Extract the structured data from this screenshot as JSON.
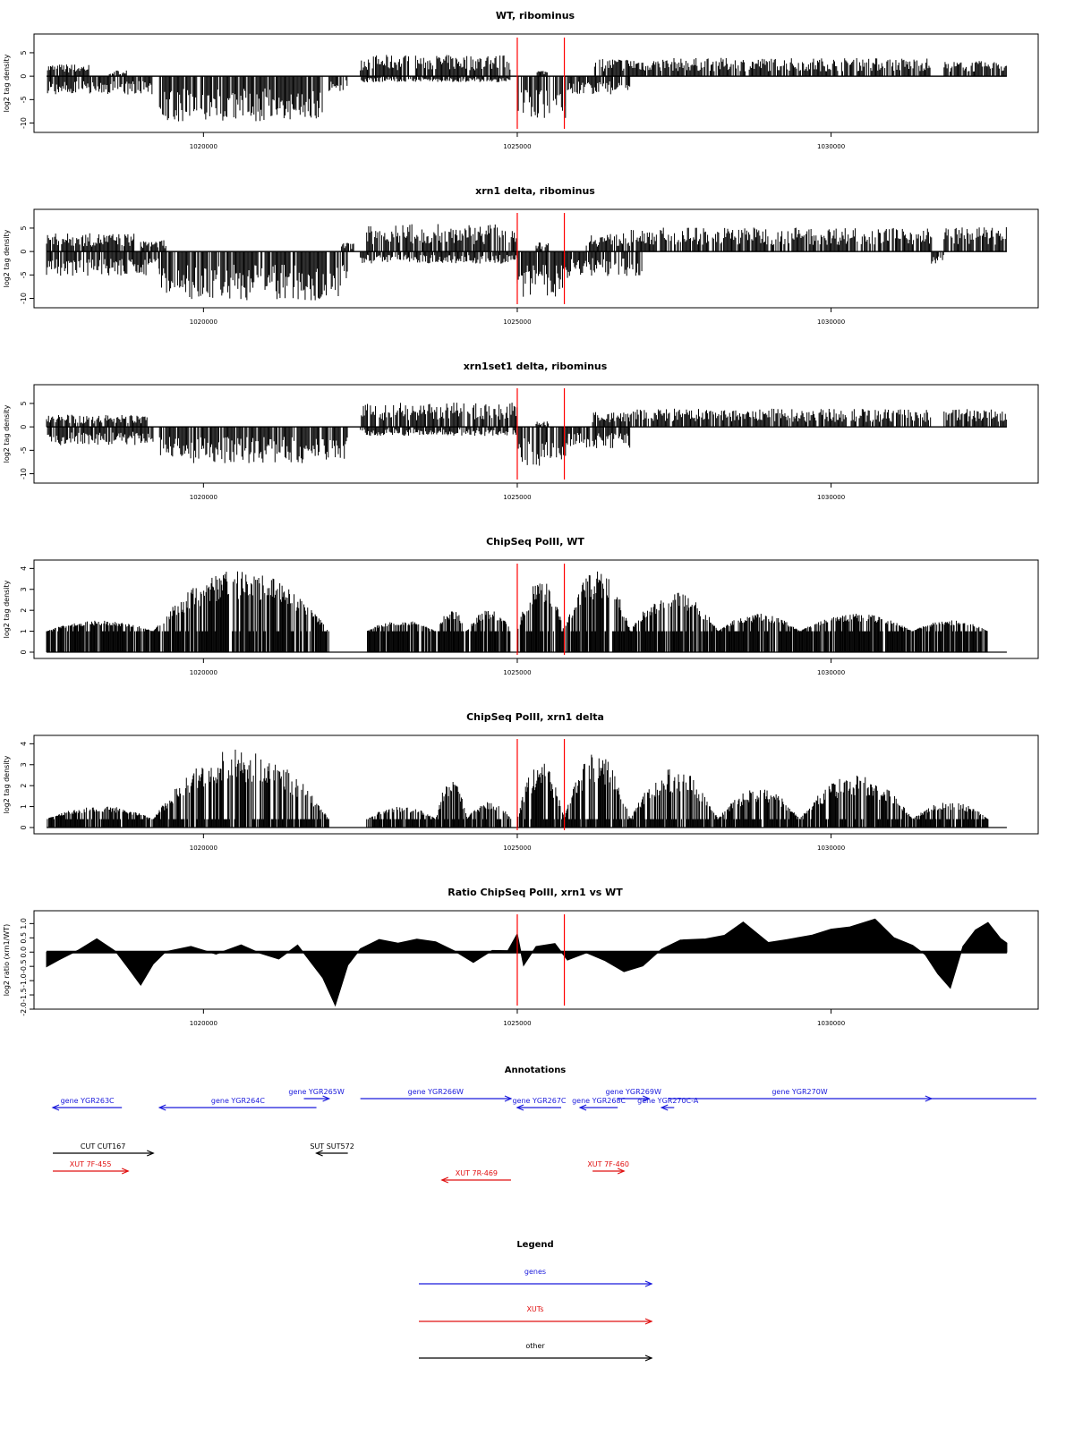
{
  "chart_data": [
    {
      "type": "bar",
      "title": "WT, ribominus",
      "ylabel": "log2 tag density",
      "ylim": [
        -12,
        9
      ],
      "yticks": [
        -10,
        -5,
        0,
        5
      ],
      "yticklabels": [
        "-10",
        "-5",
        "0",
        "5"
      ],
      "xlim": [
        1017300,
        1033300
      ],
      "xticks": [
        1020000,
        1025000,
        1030000
      ],
      "xticklabels": [
        "1020000",
        "1025000",
        "1030000"
      ],
      "markers": [
        1025000,
        1025750
      ],
      "signal": {
        "style": "stranded",
        "pos_segments": [
          {
            "x": [
              1017500,
              1018200
            ],
            "amp": 2.0
          },
          {
            "x": [
              1018500,
              1018800
            ],
            "amp": 1.0
          },
          {
            "x": [
              1022500,
              1024900
            ],
            "amp": 3.5
          },
          {
            "x": [
              1025300,
              1025500
            ],
            "amp": 1.0
          },
          {
            "x": [
              1026200,
              1027000
            ],
            "amp": 3.0
          },
          {
            "x": [
              1027000,
              1031600
            ],
            "amp": 3.0
          },
          {
            "x": [
              1031800,
              1032800
            ],
            "amp": 2.5
          }
        ],
        "neg_segments": [
          {
            "x": [
              1017500,
              1019200
            ],
            "amp": 3.0
          },
          {
            "x": [
              1019300,
              1021900
            ],
            "amp": 7.5
          },
          {
            "x": [
              1022000,
              1022300
            ],
            "amp": 2.5
          },
          {
            "x": [
              1022500,
              1024900
            ],
            "amp": 1.0
          },
          {
            "x": [
              1025000,
              1025800
            ],
            "amp": 7.0
          },
          {
            "x": [
              1025800,
              1026800
            ],
            "amp": 3.0
          }
        ]
      }
    },
    {
      "type": "bar",
      "title": "xrn1 delta, ribominus",
      "ylabel": "log2 tag density",
      "ylim": [
        -12,
        9
      ],
      "yticks": [
        -10,
        -5,
        0,
        5
      ],
      "yticklabels": [
        "-10",
        "-5",
        "0",
        "5"
      ],
      "xlim": [
        1017300,
        1033300
      ],
      "xticks": [
        1020000,
        1025000,
        1030000
      ],
      "xticklabels": [
        "1020000",
        "1025000",
        "1030000"
      ],
      "markers": [
        1025000,
        1025750
      ],
      "signal": {
        "style": "stranded",
        "pos_segments": [
          {
            "x": [
              1017500,
              1018900
            ],
            "amp": 3.0
          },
          {
            "x": [
              1019000,
              1019400
            ],
            "amp": 2.0
          },
          {
            "x": [
              1022200,
              1022400
            ],
            "amp": 1.5
          },
          {
            "x": [
              1022600,
              1025000
            ],
            "amp": 4.5
          },
          {
            "x": [
              1025300,
              1025500
            ],
            "amp": 1.5
          },
          {
            "x": [
              1026100,
              1026800
            ],
            "amp": 3.0
          },
          {
            "x": [
              1026800,
              1031600
            ],
            "amp": 4.0
          },
          {
            "x": [
              1031800,
              1032800
            ],
            "amp": 4.0
          }
        ],
        "neg_segments": [
          {
            "x": [
              1017500,
              1019300
            ],
            "amp": 4.0
          },
          {
            "x": [
              1019300,
              1022300
            ],
            "amp": 8.0
          },
          {
            "x": [
              1022500,
              1025000
            ],
            "amp": 2.0
          },
          {
            "x": [
              1025000,
              1025800
            ],
            "amp": 7.5
          },
          {
            "x": [
              1025800,
              1027000
            ],
            "amp": 4.0
          },
          {
            "x": [
              1031600,
              1031800
            ],
            "amp": 2.0
          }
        ]
      }
    },
    {
      "type": "bar",
      "title": "xrn1set1 delta, ribominus",
      "ylabel": "log2 tag density",
      "ylim": [
        -12,
        9
      ],
      "yticks": [
        -10,
        -5,
        0,
        5
      ],
      "yticklabels": [
        "-10",
        "-5",
        "0",
        "5"
      ],
      "xlim": [
        1017300,
        1033300
      ],
      "xticks": [
        1020000,
        1025000,
        1030000
      ],
      "xticklabels": [
        "1020000",
        "1025000",
        "1030000"
      ],
      "markers": [
        1025000,
        1025750
      ],
      "signal": {
        "style": "stranded",
        "pos_segments": [
          {
            "x": [
              1017500,
              1019100
            ],
            "amp": 2.0
          },
          {
            "x": [
              1022500,
              1025000
            ],
            "amp": 4.0
          },
          {
            "x": [
              1025300,
              1025500
            ],
            "amp": 1.0
          },
          {
            "x": [
              1026200,
              1026800
            ],
            "amp": 2.5
          },
          {
            "x": [
              1026800,
              1031600
            ],
            "amp": 3.0
          },
          {
            "x": [
              1031800,
              1032800
            ],
            "amp": 3.0
          }
        ],
        "neg_segments": [
          {
            "x": [
              1017500,
              1019200
            ],
            "amp": 3.0
          },
          {
            "x": [
              1019300,
              1022300
            ],
            "amp": 6.0
          },
          {
            "x": [
              1022500,
              1025000
            ],
            "amp": 1.5
          },
          {
            "x": [
              1025000,
              1025800
            ],
            "amp": 6.5
          },
          {
            "x": [
              1025800,
              1026800
            ],
            "amp": 3.5
          }
        ]
      }
    },
    {
      "type": "bar",
      "title": "ChipSeq PolII, WT",
      "ylabel": "log2 tag density",
      "ylim": [
        -0.3,
        4.4
      ],
      "yticks": [
        0,
        1,
        2,
        3,
        4
      ],
      "yticklabels": [
        "0",
        "1",
        "2",
        "3",
        "4"
      ],
      "xlim": [
        1017300,
        1033300
      ],
      "xticks": [
        1020000,
        1025000,
        1030000
      ],
      "xticklabels": [
        "1020000",
        "1025000",
        "1030000"
      ],
      "markers": [
        1025000,
        1025750
      ],
      "signal": {
        "style": "positive",
        "base": 1.0,
        "segments": [
          {
            "x": [
              1017500,
              1019200
            ],
            "peak": 1.5
          },
          {
            "x": [
              1019200,
              1022000
            ],
            "peak": 3.8
          },
          {
            "x": [
              1022600,
              1023700
            ],
            "peak": 1.5
          },
          {
            "x": [
              1023700,
              1024200
            ],
            "peak": 2.0
          },
          {
            "x": [
              1024200,
              1024900
            ],
            "peak": 2.0
          },
          {
            "x": [
              1025000,
              1025750
            ],
            "peak": 3.3
          },
          {
            "x": [
              1025750,
              1026800
            ],
            "peak": 3.8
          },
          {
            "x": [
              1026800,
              1028200
            ],
            "peak": 2.8
          },
          {
            "x": [
              1028200,
              1029500
            ],
            "peak": 1.8
          },
          {
            "x": [
              1029500,
              1031300
            ],
            "peak": 1.8
          },
          {
            "x": [
              1031300,
              1032500
            ],
            "peak": 1.5
          }
        ]
      }
    },
    {
      "type": "bar",
      "title": "ChipSeq PolII, xrn1 delta",
      "ylabel": "log2 tag density",
      "ylim": [
        -0.3,
        4.4
      ],
      "yticks": [
        0,
        1,
        2,
        3,
        4
      ],
      "yticklabels": [
        "0",
        "1",
        "2",
        "3",
        "4"
      ],
      "xlim": [
        1017300,
        1033300
      ],
      "xticks": [
        1020000,
        1025000,
        1030000
      ],
      "xticklabels": [
        "1020000",
        "1025000",
        "1030000"
      ],
      "markers": [
        1025000,
        1025750
      ],
      "signal": {
        "style": "positive",
        "base": 0.4,
        "segments": [
          {
            "x": [
              1017500,
              1019200
            ],
            "peak": 1.0
          },
          {
            "x": [
              1019200,
              1022000
            ],
            "peak": 3.6
          },
          {
            "x": [
              1022600,
              1023700
            ],
            "peak": 1.0
          },
          {
            "x": [
              1023700,
              1024200
            ],
            "peak": 2.2
          },
          {
            "x": [
              1024200,
              1024900
            ],
            "peak": 1.2
          },
          {
            "x": [
              1025000,
              1025750
            ],
            "peak": 3.0
          },
          {
            "x": [
              1025750,
              1026800
            ],
            "peak": 3.5
          },
          {
            "x": [
              1026800,
              1028200
            ],
            "peak": 2.7
          },
          {
            "x": [
              1028200,
              1029500
            ],
            "peak": 1.8
          },
          {
            "x": [
              1029500,
              1031300
            ],
            "peak": 2.4
          },
          {
            "x": [
              1031300,
              1032500
            ],
            "peak": 1.2
          }
        ]
      }
    },
    {
      "type": "area",
      "title": "Ratio ChipSeq PolII, xrn1 vs WT",
      "ylabel": "log2 ratio (xrn1/WT)",
      "ylim": [
        -2.0,
        1.45
      ],
      "yticks": [
        -2.0,
        -1.5,
        -1.0,
        -0.5,
        0.0,
        0.5,
        1.0
      ],
      "yticklabels": [
        "-2.0",
        "-1.5",
        "-1.0",
        "-0.5",
        "0.0",
        "0.5",
        "1.0"
      ],
      "xlim": [
        1017300,
        1033300
      ],
      "xticks": [
        1020000,
        1025000,
        1030000
      ],
      "xticklabels": [
        "1020000",
        "1025000",
        "1030000"
      ],
      "markers": [
        1025000,
        1025750
      ],
      "x": [
        1017500,
        1017700,
        1018000,
        1018300,
        1018600,
        1018800,
        1019000,
        1019200,
        1019400,
        1019800,
        1020200,
        1020600,
        1020900,
        1021200,
        1021500,
        1021900,
        1022100,
        1022300,
        1022500,
        1022800,
        1023100,
        1023400,
        1023700,
        1024000,
        1024300,
        1024600,
        1024850,
        1025000,
        1025100,
        1025300,
        1025600,
        1025800,
        1026100,
        1026400,
        1026700,
        1027000,
        1027300,
        1027600,
        1028000,
        1028300,
        1028600,
        1029000,
        1029300,
        1029700,
        1030000,
        1030300,
        1030700,
        1031000,
        1031300,
        1031500,
        1031700,
        1031900,
        1032100,
        1032300,
        1032500,
        1032700,
        1032800
      ],
      "y": [
        -0.5,
        -0.3,
        0.1,
        0.5,
        0.0,
        -0.6,
        -1.2,
        -0.4,
        0.0,
        0.15,
        -0.1,
        0.3,
        0.0,
        -0.2,
        0.2,
        -0.9,
        -1.9,
        -0.5,
        0.1,
        0.4,
        0.3,
        0.5,
        0.4,
        0.0,
        -0.4,
        0.1,
        0.1,
        0.6,
        -0.5,
        0.2,
        0.3,
        -0.3,
        0.0,
        -0.3,
        -0.7,
        -0.5,
        0.1,
        0.4,
        0.5,
        0.6,
        1.1,
        0.3,
        0.4,
        0.6,
        0.8,
        0.9,
        1.2,
        0.5,
        0.2,
        -0.1,
        -0.8,
        -1.3,
        0.2,
        0.8,
        1.0,
        0.5,
        0.3
      ]
    }
  ],
  "annotations": {
    "title": "Annotations",
    "xlim": [
      1017300,
      1033300
    ],
    "items": [
      {
        "label": "gene YGR263C",
        "start": 1018700,
        "end": 1017600,
        "row": 1,
        "color": "#1a1adc"
      },
      {
        "label": "gene YGR264C",
        "start": 1021800,
        "end": 1019300,
        "row": 1,
        "color": "#1a1adc"
      },
      {
        "label": "gene YGR265W",
        "start": 1021600,
        "end": 1022000,
        "row": 0,
        "color": "#1a1adc"
      },
      {
        "label": "gene YGR266W",
        "start": 1022500,
        "end": 1024900,
        "row": 0,
        "color": "#1a1adc"
      },
      {
        "label": "gene YGR267C",
        "start": 1025700,
        "end": 1025000,
        "row": 1,
        "color": "#1a1adc"
      },
      {
        "label": "gene YGR268C",
        "start": 1026600,
        "end": 1026000,
        "row": 1,
        "color": "#1a1adc"
      },
      {
        "label": "gene YGR269W",
        "start": 1026600,
        "end": 1027100,
        "row": 0,
        "color": "#1a1adc"
      },
      {
        "label": "gene YGR270C-A",
        "start": 1027500,
        "end": 1027300,
        "row": 1,
        "color": "#1a1adc"
      },
      {
        "label": "gene YGR270W",
        "start": 1027400,
        "end": 1031600,
        "row": 0,
        "color": "#1a1adc"
      },
      {
        "label": "CUT CUT167",
        "start": 1017600,
        "end": 1019200,
        "row": 2,
        "color": "#000000"
      },
      {
        "label": "SUT SUT572",
        "start": 1022300,
        "end": 1021800,
        "row": 2,
        "color": "#000000"
      },
      {
        "label": "XUT 7F-455",
        "start": 1017600,
        "end": 1018800,
        "row": 3,
        "color": "#e01010"
      },
      {
        "label": "XUT 7R-469",
        "start": 1024900,
        "end": 1023800,
        "row": 4,
        "color": "#e01010"
      },
      {
        "label": "XUT 7F-460",
        "start": 1026200,
        "end": 1026700,
        "row": 3,
        "color": "#e01010"
      }
    ]
  },
  "legend": {
    "title": "Legend",
    "items": [
      {
        "label": "genes",
        "color": "#1a1adc"
      },
      {
        "label": "XUTs",
        "color": "#e01010"
      },
      {
        "label": "other",
        "color": "#000000"
      }
    ]
  }
}
